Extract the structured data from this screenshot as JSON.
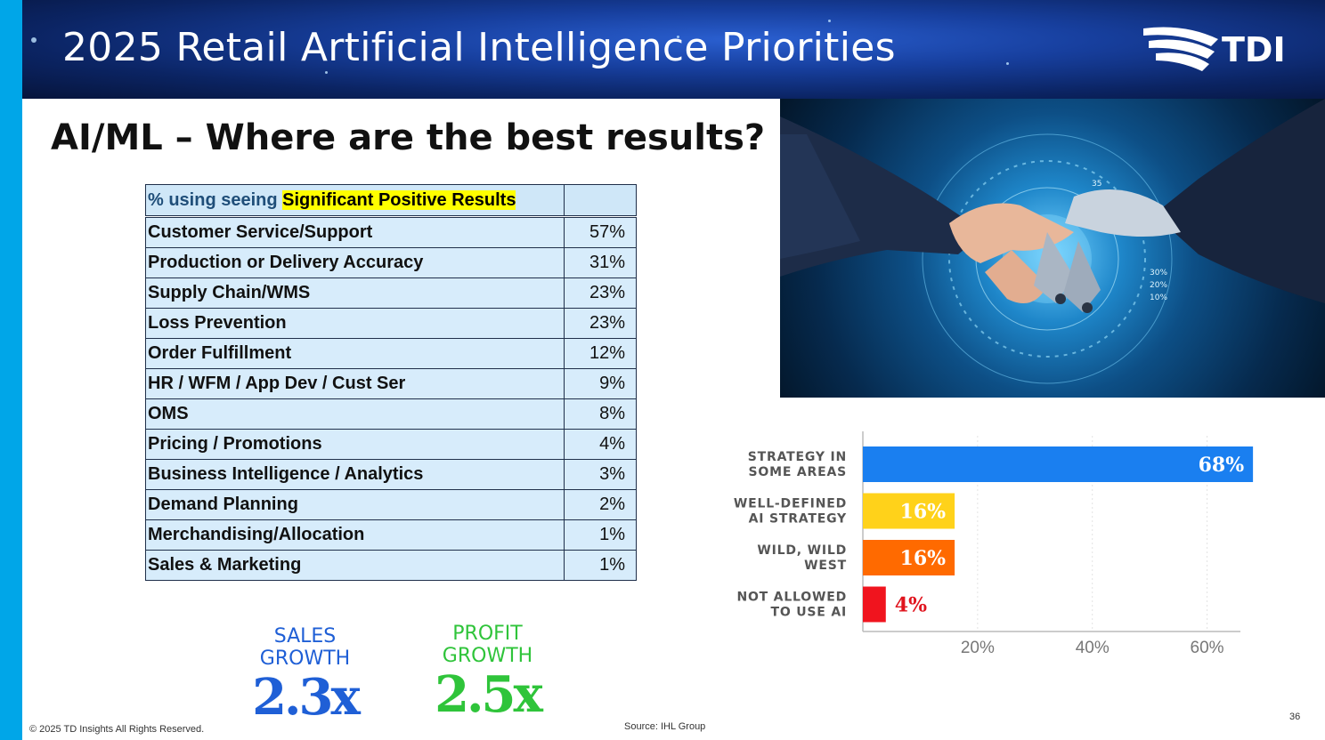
{
  "header": {
    "title": "2025 Retail Artificial Intelligence Priorities",
    "logo_text": "TDI"
  },
  "subtitle": "AI/ML – Where are the best results?",
  "results_table": {
    "header_prefix": "% using seeing ",
    "header_highlight": "Significant Positive Results",
    "rows": [
      {
        "label": "Customer Service/Support",
        "value": "57%"
      },
      {
        "label": "Production or Delivery Accuracy",
        "value": "31%"
      },
      {
        "label": "Supply Chain/WMS",
        "value": "23%"
      },
      {
        "label": "Loss Prevention",
        "value": "23%"
      },
      {
        "label": "Order Fulfillment",
        "value": "12%"
      },
      {
        "label": "HR / WFM / App Dev / Cust Ser",
        "value": "9%"
      },
      {
        "label": "OMS",
        "value": "8%"
      },
      {
        "label": "Pricing / Promotions",
        "value": "4%"
      },
      {
        "label": "Business Intelligence / Analytics",
        "value": "3%"
      },
      {
        "label": "Demand Planning",
        "value": "2%"
      },
      {
        "label": "Merchandising/Allocation",
        "value": "1%"
      },
      {
        "label": "Sales & Marketing",
        "value": "1%"
      }
    ]
  },
  "stats": [
    {
      "label1": "SALES",
      "label2": "GROWTH",
      "value": "2.3x",
      "color": "#1f5fd6"
    },
    {
      "label1": "PROFIT",
      "label2": "GROWTH",
      "value": "2.5x",
      "color": "#2fc43a"
    }
  ],
  "photo": {
    "overlay_labels": [
      "35",
      "30%",
      "20%",
      "10%"
    ]
  },
  "chart_data": {
    "type": "bar",
    "orientation": "horizontal",
    "categories": [
      [
        "STRATEGY IN",
        "SOME AREAS"
      ],
      [
        "WELL-DEFINED",
        "AI STRATEGY"
      ],
      [
        "WILD, WILD",
        "WEST"
      ],
      [
        "NOT ALLOWED",
        "TO USE AI"
      ]
    ],
    "values": [
      68,
      16,
      16,
      4
    ],
    "data_labels": [
      "68%",
      "16%",
      "16%",
      "4%"
    ],
    "colors": [
      "#1a7ff0",
      "#ffd21a",
      "#ff6a00",
      "#f0141e"
    ],
    "label_colors": [
      "#ffffff",
      "#ffffff",
      "#ffffff",
      "#e0141e"
    ],
    "xlim": [
      0,
      70
    ],
    "xticks": [
      20,
      40,
      60
    ],
    "xtick_labels": [
      "20%",
      "40%",
      "60%"
    ],
    "grid": true
  },
  "footer": {
    "copyright": "© 2025 TD Insights All Rights Reserved.",
    "source": "Source: IHL Group",
    "page_number": "36"
  }
}
